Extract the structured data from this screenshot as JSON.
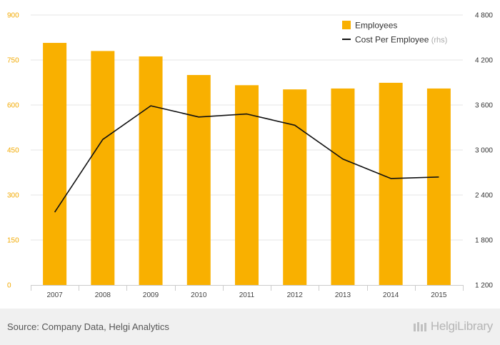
{
  "chart_data": {
    "type": "bar",
    "categories": [
      "2007",
      "2008",
      "2009",
      "2010",
      "2011",
      "2012",
      "2013",
      "2014",
      "2015"
    ],
    "series": [
      {
        "name": "Employees",
        "type": "bar",
        "axis": "left",
        "color": "#f9b000",
        "values": [
          807,
          780,
          762,
          700,
          666,
          652,
          655,
          674,
          655
        ]
      },
      {
        "name": "Cost Per Employee",
        "axis_note": "(rhs)",
        "type": "line",
        "axis": "right",
        "color": "#111111",
        "values": [
          2170,
          3140,
          3590,
          3440,
          3480,
          3330,
          2880,
          2620,
          2640
        ]
      }
    ],
    "yleft": {
      "ylim": [
        0,
        900
      ],
      "ticks": [
        0,
        150,
        300,
        450,
        600,
        750,
        900
      ],
      "tick_labels": [
        "0",
        "150",
        "300",
        "450",
        "600",
        "750",
        "900"
      ]
    },
    "yright": {
      "ylim": [
        1200,
        4800
      ],
      "ticks": [
        1200,
        1800,
        2400,
        3000,
        3600,
        4200,
        4800
      ],
      "tick_labels": [
        "1 200",
        "1 800",
        "2 400",
        "3 000",
        "3 600",
        "4 200",
        "4 800"
      ]
    },
    "legend": "top-right",
    "grid": true
  },
  "footer": {
    "source": "Source: Company Data, Helgi Analytics",
    "brand": "HelgiLibrary"
  }
}
